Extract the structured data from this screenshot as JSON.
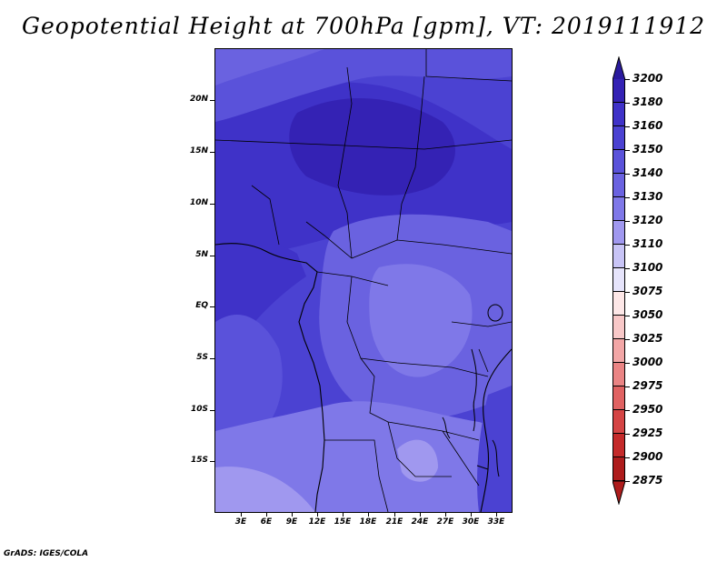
{
  "title": "Geopotential Height at 700hPa [gpm], VT: 2019111912",
  "footer": "GrADS: IGES/COLA",
  "y_axis": [
    "20N",
    "15N",
    "10N",
    "5N",
    "EQ",
    "5S",
    "10S",
    "15S"
  ],
  "x_axis": [
    "3E",
    "6E",
    "9E",
    "12E",
    "15E",
    "18E",
    "21E",
    "24E",
    "27E",
    "30E",
    "33E"
  ],
  "colorbar": {
    "labels": [
      "3200",
      "3180",
      "3160",
      "3150",
      "3140",
      "3130",
      "3120",
      "3110",
      "3100",
      "3075",
      "3050",
      "3025",
      "3000",
      "2975",
      "2950",
      "2925",
      "2900",
      "2875"
    ],
    "colors": [
      "#2a1a9e",
      "#3422b4",
      "#3f32c8",
      "#4b42d2",
      "#5a52da",
      "#6a62e0",
      "#7f78e8",
      "#a098ef",
      "#c8c4f6",
      "#e6e4fb",
      "#fde7e7",
      "#f8c8c8",
      "#f2a6a6",
      "#ea8484",
      "#e06262",
      "#d44444",
      "#c42a2a",
      "#ae1c1c"
    ]
  },
  "map_fields": {
    "background": "#5a4fd8",
    "sahel_high": "#3422b4",
    "west_coast": "#3f32c8",
    "congo_basin": "#6a62e0",
    "southern_low": "#7f78e8",
    "far_southwest": "#a098ef"
  }
}
